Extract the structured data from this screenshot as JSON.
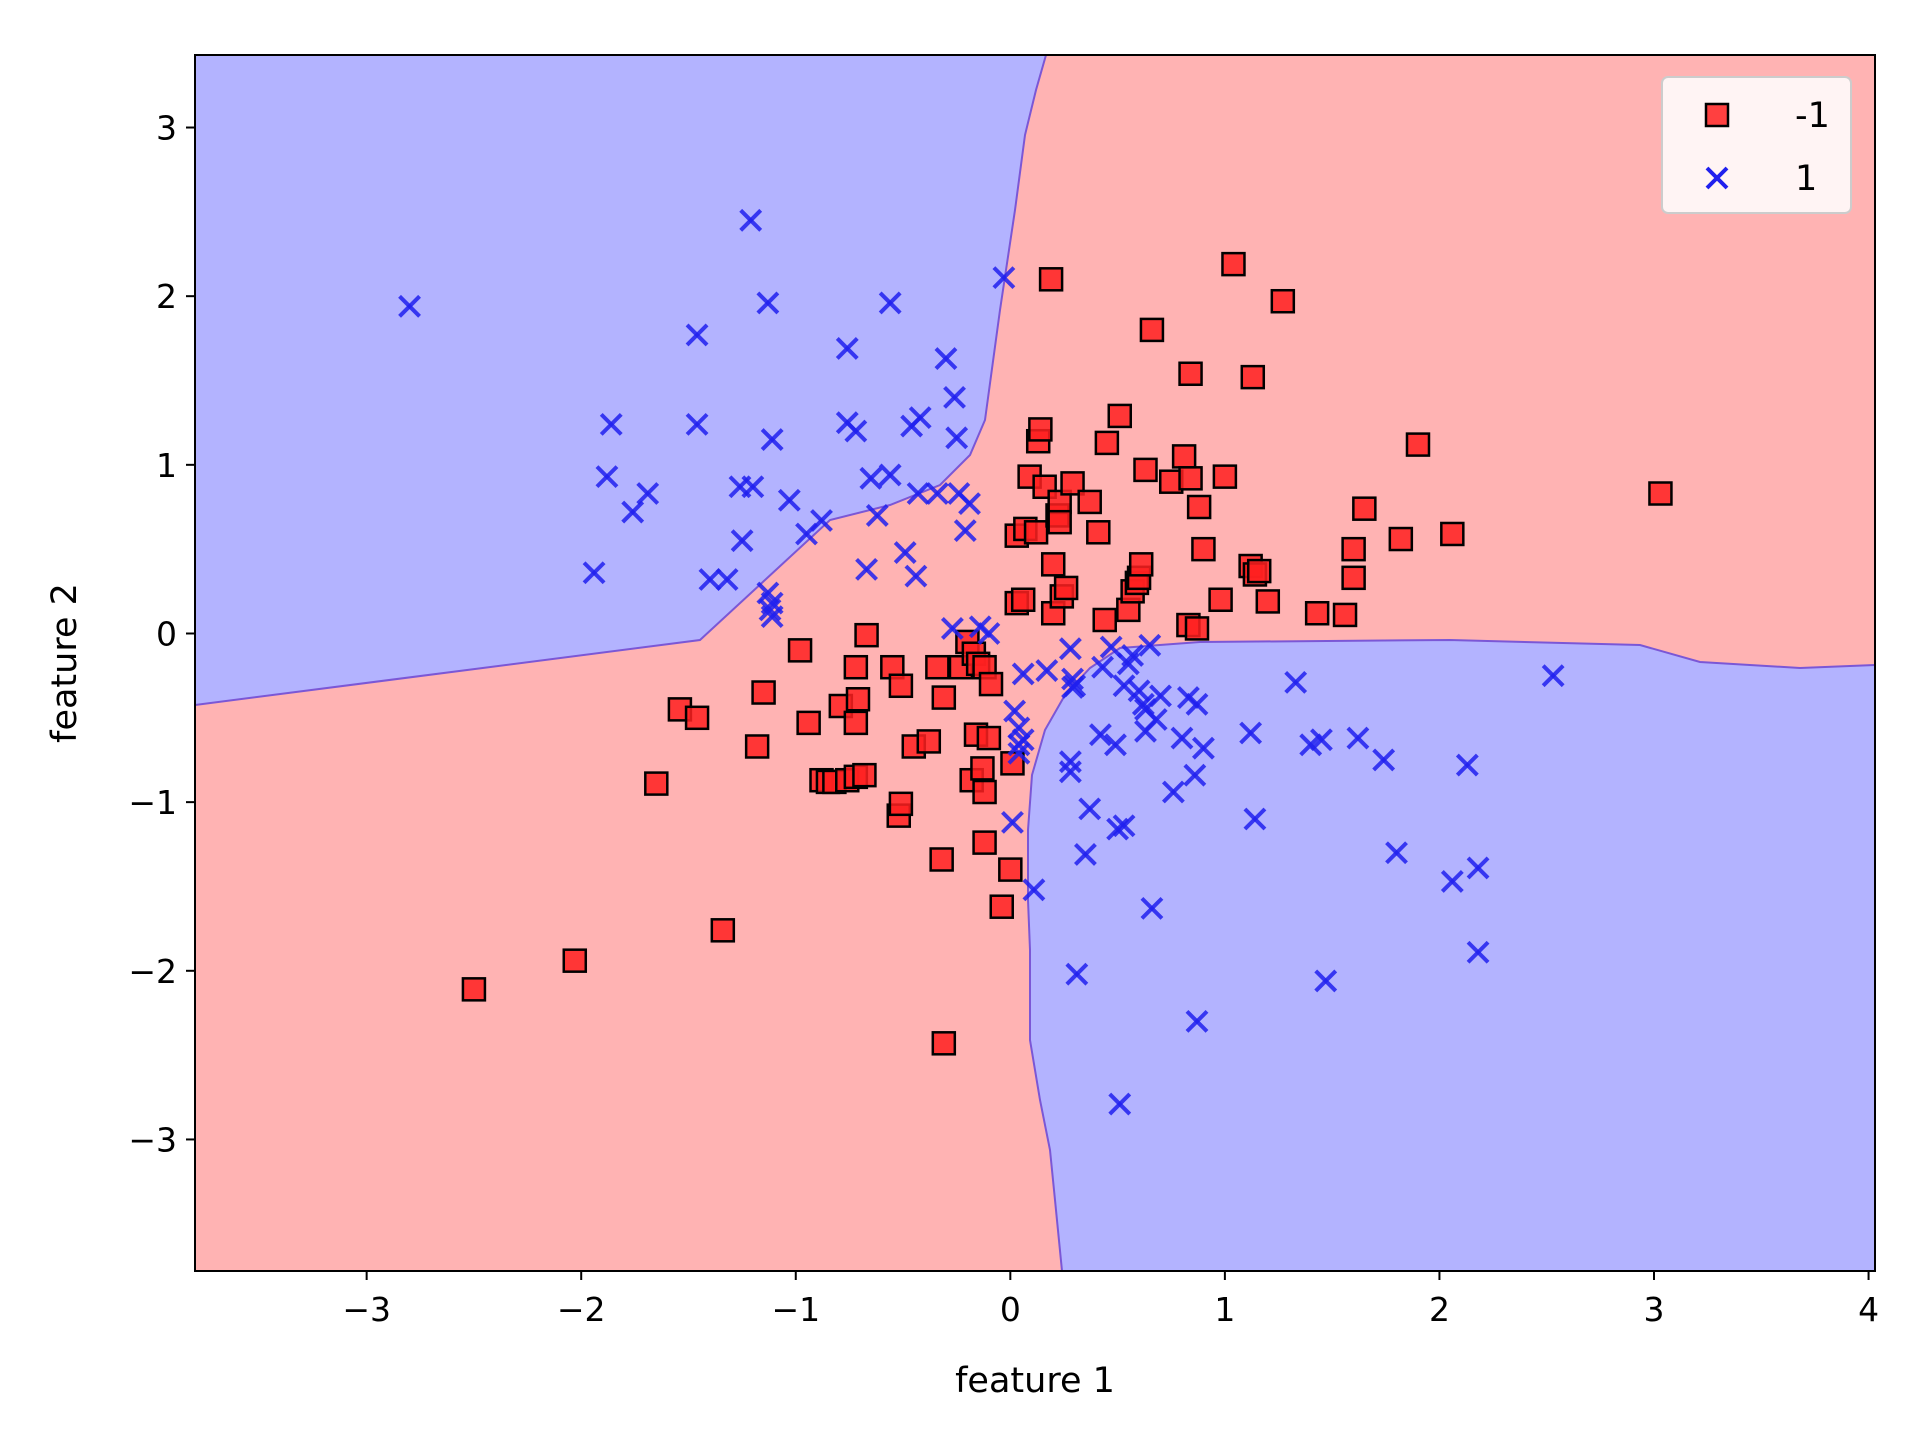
{
  "chart_data": {
    "type": "scatter",
    "title": "",
    "xlabel": "feature 1",
    "ylabel": "feature 2",
    "xlim": [
      -3.8,
      4.03
    ],
    "ylim": [
      -3.78,
      3.43
    ],
    "xticks": [
      -3,
      -2,
      -1,
      0,
      1,
      2,
      3,
      4
    ],
    "yticks": [
      -3,
      -2,
      -1,
      0,
      1,
      2,
      3
    ],
    "xtick_labels": [
      "−3",
      "−2",
      "−1",
      "0",
      "1",
      "2",
      "3",
      "4"
    ],
    "ytick_labels": [
      "−3",
      "−2",
      "−1",
      "0",
      "1",
      "2",
      "3"
    ],
    "grid": false,
    "legend_position": "top-right",
    "decision_regions": {
      "description_colors": {
        "-1": "#ffb3b3",
        "1": "#b3b3ff"
      },
      "boundary": "xor-like: region 1 where sign(feature1) differs from sign(feature2), shifted"
    },
    "series": [
      {
        "name": "-1",
        "marker": "square",
        "color": "#ff2020",
        "edge": "#000000",
        "points": [
          [
            -2.5,
            -2.11
          ],
          [
            -2.03,
            -1.94
          ],
          [
            -1.34,
            -1.76
          ],
          [
            -0.31,
            -2.43
          ],
          [
            -1.65,
            -0.89
          ],
          [
            -1.54,
            -0.45
          ],
          [
            -1.46,
            -0.5
          ],
          [
            -1.18,
            -0.67
          ],
          [
            -1.15,
            -0.35
          ],
          [
            -0.98,
            -0.1
          ],
          [
            -0.94,
            -0.53
          ],
          [
            -0.88,
            -0.87
          ],
          [
            -0.85,
            -0.88
          ],
          [
            -0.82,
            -0.88
          ],
          [
            -0.76,
            -0.87
          ],
          [
            -0.72,
            -0.85
          ],
          [
            -0.68,
            -0.84
          ],
          [
            -0.79,
            -0.43
          ],
          [
            -0.71,
            -0.39
          ],
          [
            -0.72,
            -0.53
          ],
          [
            -0.72,
            -0.2
          ],
          [
            -0.67,
            -0.01
          ],
          [
            -0.55,
            -0.2
          ],
          [
            -0.51,
            -0.31
          ],
          [
            -0.45,
            -0.67
          ],
          [
            -0.38,
            -0.64
          ],
          [
            -0.34,
            -0.2
          ],
          [
            -0.31,
            -0.38
          ],
          [
            -0.23,
            -0.2
          ],
          [
            -0.2,
            -0.05
          ],
          [
            -0.17,
            -0.12
          ],
          [
            -0.15,
            -0.18
          ],
          [
            -0.12,
            -0.2
          ],
          [
            -0.09,
            -0.3
          ],
          [
            -0.16,
            -0.6
          ],
          [
            -0.1,
            -0.62
          ],
          [
            -0.18,
            -0.87
          ],
          [
            -0.13,
            -0.8
          ],
          [
            -0.12,
            -0.94
          ],
          [
            -0.52,
            -1.08
          ],
          [
            -0.51,
            -1.01
          ],
          [
            -0.32,
            -1.34
          ],
          [
            -0.12,
            -1.24
          ],
          [
            0.01,
            -0.77
          ],
          [
            -0.0,
            -1.4
          ],
          [
            -0.04,
            -1.62
          ],
          [
            0.03,
            0.18
          ],
          [
            0.06,
            0.2
          ],
          [
            0.03,
            0.58
          ],
          [
            0.07,
            0.62
          ],
          [
            0.12,
            0.6
          ],
          [
            0.09,
            0.93
          ],
          [
            0.13,
            1.14
          ],
          [
            0.14,
            1.21
          ],
          [
            0.16,
            0.87
          ],
          [
            0.2,
            0.41
          ],
          [
            0.2,
            0.12
          ],
          [
            0.24,
            0.22
          ],
          [
            0.26,
            0.27
          ],
          [
            0.22,
            0.7
          ],
          [
            0.23,
            0.78
          ],
          [
            0.23,
            0.66
          ],
          [
            0.29,
            0.89
          ],
          [
            0.37,
            0.78
          ],
          [
            0.41,
            0.6
          ],
          [
            0.44,
            0.08
          ],
          [
            0.45,
            1.13
          ],
          [
            0.51,
            1.29
          ],
          [
            0.55,
            0.14
          ],
          [
            0.57,
            0.25
          ],
          [
            0.59,
            0.3
          ],
          [
            0.6,
            0.33
          ],
          [
            0.61,
            0.41
          ],
          [
            0.63,
            0.97
          ],
          [
            0.66,
            1.8
          ],
          [
            0.19,
            2.1
          ],
          [
            0.75,
            0.9
          ],
          [
            0.81,
            1.05
          ],
          [
            0.84,
            0.92
          ],
          [
            0.83,
            0.05
          ],
          [
            0.87,
            0.03
          ],
          [
            0.88,
            0.75
          ],
          [
            0.84,
            1.54
          ],
          [
            0.9,
            0.5
          ],
          [
            0.98,
            0.2
          ],
          [
            1.0,
            0.93
          ],
          [
            1.04,
            2.19
          ],
          [
            1.12,
            0.4
          ],
          [
            1.14,
            0.35
          ],
          [
            1.16,
            0.37
          ],
          [
            1.13,
            1.52
          ],
          [
            1.2,
            0.19
          ],
          [
            1.27,
            1.97
          ],
          [
            1.43,
            0.12
          ],
          [
            1.56,
            0.11
          ],
          [
            1.6,
            0.5
          ],
          [
            1.6,
            0.33
          ],
          [
            1.65,
            0.74
          ],
          [
            1.82,
            0.56
          ],
          [
            1.9,
            1.12
          ],
          [
            2.06,
            0.59
          ],
          [
            3.03,
            0.83
          ]
        ]
      },
      {
        "name": "1",
        "marker": "x",
        "color": "#2020ee",
        "points": [
          [
            -2.8,
            1.94
          ],
          [
            -1.94,
            0.36
          ],
          [
            -1.88,
            0.93
          ],
          [
            -1.86,
            1.24
          ],
          [
            -1.76,
            0.72
          ],
          [
            -1.69,
            0.83
          ],
          [
            -1.46,
            1.77
          ],
          [
            -1.46,
            1.24
          ],
          [
            -1.4,
            0.32
          ],
          [
            -1.32,
            0.32
          ],
          [
            -1.26,
            0.87
          ],
          [
            -1.25,
            0.55
          ],
          [
            -1.21,
            2.45
          ],
          [
            -1.2,
            0.87
          ],
          [
            -1.13,
            1.96
          ],
          [
            -1.11,
            1.15
          ],
          [
            -1.13,
            0.24
          ],
          [
            -1.11,
            0.18
          ],
          [
            -1.12,
            0.14
          ],
          [
            -1.11,
            0.1
          ],
          [
            -1.03,
            0.79
          ],
          [
            -0.95,
            0.59
          ],
          [
            -0.88,
            0.67
          ],
          [
            -0.76,
            1.69
          ],
          [
            -0.76,
            1.25
          ],
          [
            -0.72,
            1.2
          ],
          [
            -0.67,
            0.38
          ],
          [
            -0.65,
            0.92
          ],
          [
            -0.62,
            0.7
          ],
          [
            -0.56,
            1.96
          ],
          [
            -0.56,
            0.94
          ],
          [
            -0.49,
            0.48
          ],
          [
            -0.46,
            1.23
          ],
          [
            -0.44,
            0.34
          ],
          [
            -0.42,
            1.28
          ],
          [
            -0.43,
            0.83
          ],
          [
            -0.34,
            0.83
          ],
          [
            -0.3,
            1.63
          ],
          [
            -0.27,
            0.03
          ],
          [
            -0.26,
            1.4
          ],
          [
            -0.25,
            1.16
          ],
          [
            -0.24,
            0.83
          ],
          [
            -0.21,
            0.61
          ],
          [
            -0.19,
            0.77
          ],
          [
            -0.14,
            0.04
          ],
          [
            -0.1,
            0.0
          ],
          [
            -0.03,
            2.11
          ],
          [
            0.02,
            -0.46
          ],
          [
            0.04,
            -0.56
          ],
          [
            0.04,
            -0.66
          ],
          [
            0.04,
            -0.71
          ],
          [
            0.06,
            -0.24
          ],
          [
            0.06,
            -0.63
          ],
          [
            0.01,
            -1.12
          ],
          [
            0.11,
            -1.52
          ],
          [
            0.17,
            -0.22
          ],
          [
            0.28,
            -0.09
          ],
          [
            0.29,
            -0.27
          ],
          [
            0.29,
            -0.32
          ],
          [
            0.28,
            -0.76
          ],
          [
            0.28,
            -0.82
          ],
          [
            0.3,
            -0.31
          ],
          [
            0.31,
            -2.02
          ],
          [
            0.35,
            -1.31
          ],
          [
            0.37,
            -1.04
          ],
          [
            0.42,
            -0.6
          ],
          [
            0.43,
            -0.2
          ],
          [
            0.47,
            -0.08
          ],
          [
            0.49,
            -0.66
          ],
          [
            0.5,
            -1.16
          ],
          [
            0.51,
            -2.79
          ],
          [
            0.53,
            -1.14
          ],
          [
            0.53,
            -0.31
          ],
          [
            0.55,
            -0.18
          ],
          [
            0.57,
            -0.13
          ],
          [
            0.6,
            -0.34
          ],
          [
            0.62,
            -0.42
          ],
          [
            0.63,
            -0.45
          ],
          [
            0.63,
            -0.58
          ],
          [
            0.65,
            -0.07
          ],
          [
            0.66,
            -1.63
          ],
          [
            0.68,
            -0.51
          ],
          [
            0.7,
            -0.37
          ],
          [
            0.76,
            -0.94
          ],
          [
            0.8,
            -0.62
          ],
          [
            0.83,
            -0.38
          ],
          [
            0.86,
            -0.84
          ],
          [
            0.87,
            -0.42
          ],
          [
            0.87,
            -2.3
          ],
          [
            0.9,
            -0.68
          ],
          [
            1.12,
            -0.59
          ],
          [
            1.14,
            -1.1
          ],
          [
            1.33,
            -0.29
          ],
          [
            1.4,
            -0.66
          ],
          [
            1.45,
            -0.63
          ],
          [
            1.47,
            -2.06
          ],
          [
            1.62,
            -0.62
          ],
          [
            1.74,
            -0.75
          ],
          [
            1.8,
            -1.3
          ],
          [
            2.06,
            -1.47
          ],
          [
            2.13,
            -0.78
          ],
          [
            2.18,
            -1.39
          ],
          [
            2.18,
            -1.89
          ],
          [
            2.53,
            -0.25
          ]
        ]
      }
    ]
  }
}
